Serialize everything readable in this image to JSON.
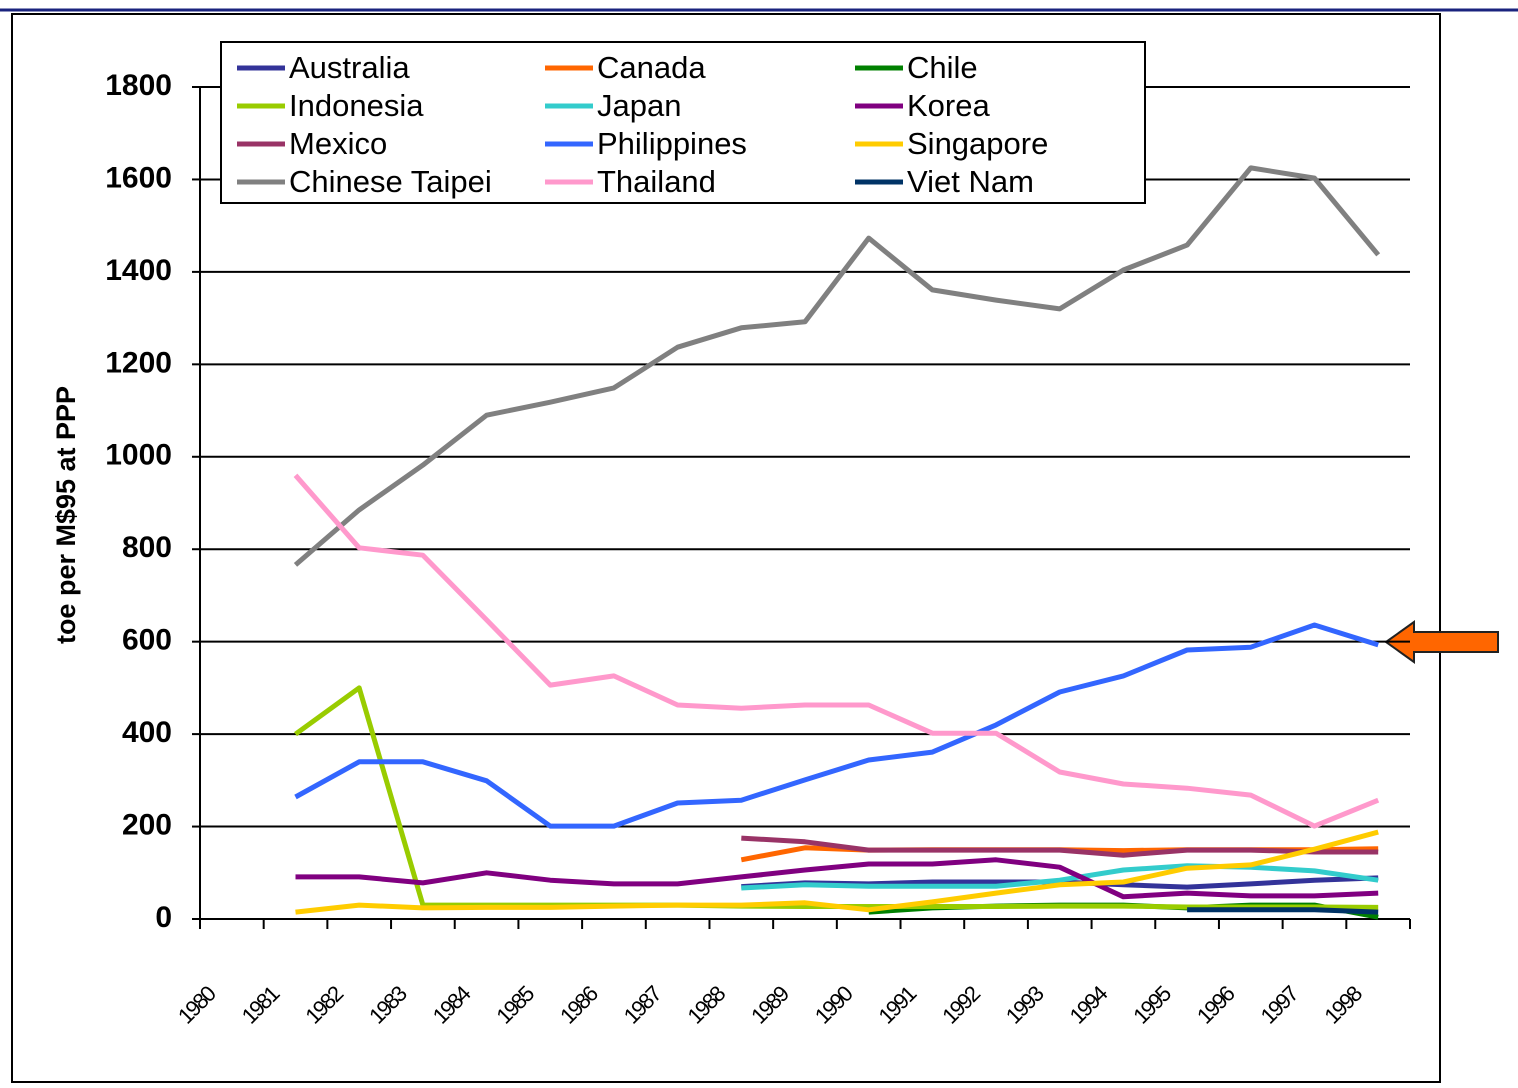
{
  "chart_data": {
    "type": "line",
    "ylabel": "toe per M$95 at PPP",
    "categories": [
      "1980",
      "1981",
      "1982",
      "1983",
      "1984",
      "1985",
      "1986",
      "1987",
      "1988",
      "1989",
      "1990",
      "1991",
      "1992",
      "1993",
      "1994",
      "1995",
      "1996",
      "1997",
      "1998"
    ],
    "ylim": [
      0,
      1800
    ],
    "yticks": [
      0,
      200,
      400,
      600,
      800,
      1000,
      1200,
      1400,
      1600,
      1800
    ],
    "grid": true,
    "legend": "upper-left",
    "series": [
      {
        "name": "Australia",
        "color": "#333399",
        "values": [
          null,
          null,
          null,
          null,
          null,
          null,
          null,
          null,
          70,
          78,
          76,
          80,
          80,
          80,
          74,
          69,
          76,
          84,
          89
        ]
      },
      {
        "name": "Canada",
        "color": "#ff6600",
        "values": [
          null,
          null,
          null,
          null,
          null,
          null,
          null,
          null,
          128,
          154,
          149,
          150,
          150,
          150,
          148,
          150,
          150,
          150,
          152
        ]
      },
      {
        "name": "Chile",
        "color": "#008000",
        "values": [
          null,
          null,
          null,
          null,
          null,
          null,
          null,
          null,
          null,
          null,
          15,
          24,
          28,
          30,
          30,
          24,
          30,
          30,
          4
        ]
      },
      {
        "name": "Indonesia",
        "color": "#99cc00",
        "values": [
          null,
          400,
          500,
          30,
          30,
          30,
          30,
          30,
          28,
          27,
          27,
          27,
          27,
          28,
          28,
          26,
          26,
          26,
          25
        ]
      },
      {
        "name": "Japan",
        "color": "#33cccc",
        "values": [
          null,
          null,
          null,
          null,
          null,
          null,
          null,
          null,
          67,
          74,
          71,
          71,
          71,
          84,
          106,
          115,
          112,
          104,
          84
        ]
      },
      {
        "name": "Korea",
        "color": "#800080",
        "values": [
          null,
          91,
          91,
          78,
          100,
          84,
          76,
          76,
          91,
          106,
          119,
          119,
          128,
          112,
          48,
          56,
          50,
          50,
          56
        ]
      },
      {
        "name": "Mexico",
        "color": "#993366",
        "values": [
          null,
          null,
          null,
          null,
          null,
          null,
          null,
          null,
          175,
          167,
          149,
          149,
          149,
          149,
          138,
          149,
          149,
          145,
          145
        ]
      },
      {
        "name": "Philippines",
        "color": "#3366ff",
        "values": [
          null,
          264,
          340,
          340,
          299,
          201,
          201,
          251,
          257,
          301,
          344,
          361,
          420,
          491,
          526,
          582,
          588,
          636,
          593
        ]
      },
      {
        "name": "Singapore",
        "color": "#ffcc00",
        "values": [
          null,
          15,
          30,
          24,
          25,
          25,
          28,
          30,
          30,
          35,
          20,
          37,
          56,
          74,
          80,
          110,
          117,
          151,
          188
        ]
      },
      {
        "name": "Chinese Taipei",
        "color": "#808080",
        "values": [
          null,
          766,
          885,
          982,
          1090,
          1118,
          1149,
          1237,
          1279,
          1292,
          1473,
          1361,
          1339,
          1320,
          1404,
          1458,
          1625,
          1603,
          1437
        ]
      },
      {
        "name": "Thailand",
        "color": "#ff99cc",
        "values": [
          null,
          960,
          803,
          787,
          647,
          506,
          526,
          463,
          456,
          463,
          463,
          402,
          402,
          318,
          292,
          283,
          268,
          201,
          257
        ]
      },
      {
        "name": "Viet Nam",
        "color": "#003366",
        "values": [
          null,
          null,
          null,
          null,
          null,
          null,
          null,
          null,
          null,
          null,
          null,
          null,
          null,
          null,
          null,
          20,
          20,
          20,
          15
        ]
      }
    ]
  }
}
